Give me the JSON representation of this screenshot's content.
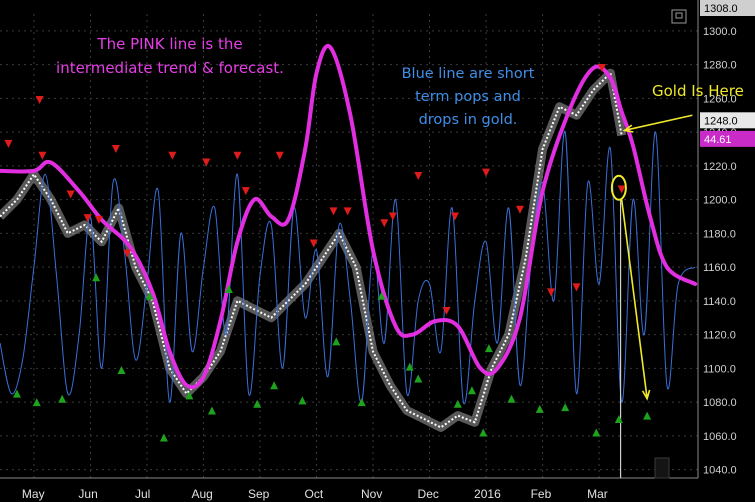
{
  "title": "",
  "annotations": {
    "pink_note": "The PINK line is the\nintermediate trend & forecast.",
    "blue_note": "Blue line are short\nterm pops and\ndrops in gold.",
    "gold_note": "Gold Is Here"
  },
  "price_tags": {
    "top": "1308.0",
    "current": "1248.0",
    "indicator": "44.61"
  },
  "colors": {
    "background": "#000000",
    "price_bars": "#ffffff",
    "pink_line": "#e02ee0",
    "blue_line": "#3a6fd8",
    "sell_marker": "#e01b1b",
    "buy_marker": "#1fa31f",
    "arrow": "#f0ea2a",
    "grid": "#3a3a3a"
  },
  "chart_data": {
    "type": "line",
    "grid": true,
    "legend": "none",
    "y_axis": {
      "ticks": [
        "1040.0",
        "1060.0",
        "1080.0",
        "1100.0",
        "1120.0",
        "1140.0",
        "1160.0",
        "1180.0",
        "1200.0",
        "1220.0",
        "1240.0",
        "1260.0",
        "1280.0",
        "1300.0"
      ],
      "ylim": [
        1035,
        1310
      ]
    },
    "x_axis": {
      "ticks": [
        {
          "label": "May",
          "x": 0.6
        },
        {
          "label": "Jun",
          "x": 1.6
        },
        {
          "label": "Jul",
          "x": 2.6
        },
        {
          "label": "Aug",
          "x": 3.6
        },
        {
          "label": "Sep",
          "x": 4.6
        },
        {
          "label": "Oct",
          "x": 5.6
        },
        {
          "label": "Nov",
          "x": 6.6
        },
        {
          "label": "Dec",
          "x": 7.6
        },
        {
          "label": "2016",
          "x": 8.6
        },
        {
          "label": "Feb",
          "x": 9.6
        },
        {
          "label": "Mar",
          "x": 10.6
        }
      ],
      "xlim": [
        0,
        12.35
      ]
    },
    "series": [
      {
        "role": "intermediate trend",
        "color": "#e02ee0",
        "x": [
          0,
          0.6,
          0.9,
          1.4,
          1.8,
          2.3,
          2.7,
          3.0,
          3.3,
          3.6,
          3.9,
          4.2,
          4.5,
          4.8,
          5.1,
          5.4,
          5.6,
          5.85,
          6.2,
          6.6,
          7.0,
          7.3,
          7.7,
          8.1,
          8.5,
          8.8,
          9.2,
          9.6,
          10.1,
          10.5,
          10.8,
          11.0,
          11.2,
          11.5,
          11.8,
          12.3
        ],
        "y": [
          1217,
          1217,
          1222,
          1205,
          1188,
          1172,
          1145,
          1110,
          1090,
          1095,
          1128,
          1175,
          1200,
          1190,
          1188,
          1230,
          1275,
          1290,
          1250,
          1170,
          1125,
          1120,
          1128,
          1125,
          1100,
          1100,
          1130,
          1205,
          1255,
          1278,
          1272,
          1252,
          1232,
          1190,
          1160,
          1150
        ]
      },
      {
        "role": "short term oscillator",
        "color": "#3a6fd8",
        "x": [
          0.0,
          0.2,
          0.4,
          0.6,
          0.8,
          1.0,
          1.2,
          1.4,
          1.6,
          1.8,
          2.0,
          2.2,
          2.4,
          2.6,
          2.8,
          3.0,
          3.2,
          3.4,
          3.6,
          3.8,
          4.0,
          4.2,
          4.4,
          4.6,
          4.8,
          5.0,
          5.2,
          5.4,
          5.6,
          5.8,
          6.0,
          6.2,
          6.4,
          6.6,
          6.8,
          7.0,
          7.2,
          7.4,
          7.6,
          7.8,
          8.0,
          8.2,
          8.4,
          8.6,
          8.8,
          9.0,
          9.2,
          9.4,
          9.6,
          9.8,
          10.0,
          10.2,
          10.4,
          10.6,
          10.8,
          11.0,
          11.2,
          11.4,
          11.6,
          11.8,
          12.0,
          12.3
        ],
        "y": [
          1115,
          1085,
          1105,
          1160,
          1215,
          1155,
          1085,
          1120,
          1190,
          1100,
          1210,
          1170,
          1105,
          1150,
          1205,
          1080,
          1180,
          1110,
          1160,
          1195,
          1120,
          1215,
          1085,
          1155,
          1185,
          1100,
          1195,
          1130,
          1170,
          1095,
          1185,
          1140,
          1080,
          1170,
          1115,
          1200,
          1085,
          1140,
          1150,
          1110,
          1195,
          1080,
          1140,
          1175,
          1115,
          1195,
          1090,
          1165,
          1210,
          1140,
          1240,
          1085,
          1210,
          1150,
          1230,
          1080,
          1200,
          1120,
          1240,
          1090,
          1150,
          1160
        ]
      },
      {
        "role": "price bars",
        "color": "#ffffff",
        "x": [
          0.0,
          0.3,
          0.6,
          0.9,
          1.2,
          1.5,
          1.8,
          2.1,
          2.4,
          2.7,
          3.0,
          3.3,
          3.6,
          3.9,
          4.2,
          4.5,
          4.8,
          5.1,
          5.4,
          5.7,
          6.0,
          6.3,
          6.6,
          6.9,
          7.2,
          7.5,
          7.8,
          8.1,
          8.4,
          8.7,
          9.0,
          9.3,
          9.6,
          9.9,
          10.2,
          10.5,
          10.8,
          11.0
        ],
        "y": [
          1190,
          1200,
          1215,
          1200,
          1180,
          1185,
          1175,
          1195,
          1160,
          1140,
          1100,
          1085,
          1095,
          1110,
          1140,
          1135,
          1130,
          1140,
          1150,
          1165,
          1180,
          1160,
          1110,
          1090,
          1075,
          1070,
          1065,
          1072,
          1068,
          1100,
          1120,
          1165,
          1230,
          1255,
          1250,
          1265,
          1275,
          1238
        ]
      }
    ],
    "sell_markers": [
      {
        "x": 0.15,
        "y": 1233
      },
      {
        "x": 0.7,
        "y": 1259
      },
      {
        "x": 0.75,
        "y": 1226
      },
      {
        "x": 1.25,
        "y": 1203
      },
      {
        "x": 1.55,
        "y": 1189
      },
      {
        "x": 1.75,
        "y": 1188
      },
      {
        "x": 2.05,
        "y": 1230
      },
      {
        "x": 2.25,
        "y": 1168
      },
      {
        "x": 3.05,
        "y": 1226
      },
      {
        "x": 3.65,
        "y": 1222
      },
      {
        "x": 4.2,
        "y": 1226
      },
      {
        "x": 4.35,
        "y": 1205
      },
      {
        "x": 4.95,
        "y": 1226
      },
      {
        "x": 5.55,
        "y": 1174
      },
      {
        "x": 5.9,
        "y": 1193
      },
      {
        "x": 6.15,
        "y": 1193
      },
      {
        "x": 6.8,
        "y": 1186
      },
      {
        "x": 6.95,
        "y": 1190
      },
      {
        "x": 7.4,
        "y": 1214
      },
      {
        "x": 7.9,
        "y": 1134
      },
      {
        "x": 8.05,
        "y": 1190
      },
      {
        "x": 8.6,
        "y": 1216
      },
      {
        "x": 9.2,
        "y": 1194
      },
      {
        "x": 9.75,
        "y": 1145
      },
      {
        "x": 10.2,
        "y": 1148
      },
      {
        "x": 10.65,
        "y": 1278
      },
      {
        "x": 11.0,
        "y": 1206
      }
    ],
    "buy_markers": [
      {
        "x": 0.3,
        "y": 1085
      },
      {
        "x": 0.65,
        "y": 1080
      },
      {
        "x": 1.1,
        "y": 1082
      },
      {
        "x": 1.7,
        "y": 1154
      },
      {
        "x": 2.15,
        "y": 1099
      },
      {
        "x": 2.65,
        "y": 1143
      },
      {
        "x": 2.9,
        "y": 1059
      },
      {
        "x": 3.35,
        "y": 1084
      },
      {
        "x": 3.75,
        "y": 1075
      },
      {
        "x": 4.05,
        "y": 1147
      },
      {
        "x": 4.55,
        "y": 1079
      },
      {
        "x": 4.85,
        "y": 1090
      },
      {
        "x": 5.35,
        "y": 1081
      },
      {
        "x": 5.95,
        "y": 1116
      },
      {
        "x": 6.4,
        "y": 1080
      },
      {
        "x": 6.75,
        "y": 1143
      },
      {
        "x": 7.25,
        "y": 1101
      },
      {
        "x": 7.4,
        "y": 1094
      },
      {
        "x": 8.1,
        "y": 1079
      },
      {
        "x": 8.35,
        "y": 1087
      },
      {
        "x": 8.65,
        "y": 1112
      },
      {
        "x": 8.55,
        "y": 1062
      },
      {
        "x": 9.05,
        "y": 1082
      },
      {
        "x": 9.55,
        "y": 1076
      },
      {
        "x": 10.0,
        "y": 1077
      },
      {
        "x": 10.55,
        "y": 1062
      },
      {
        "x": 10.95,
        "y": 1070
      },
      {
        "x": 11.45,
        "y": 1072
      }
    ],
    "highlight": {
      "label": "current gold position",
      "x": 10.95,
      "y": 1207
    },
    "forecast_arrows": [
      {
        "from_x": 11.0,
        "from_y": 1200,
        "to_x": 11.45,
        "to_y": 1082
      },
      {
        "from_x": 12.25,
        "from_y": 1250,
        "to_x": 11.05,
        "to_y": 1241
      }
    ],
    "today_x": 10.98
  }
}
